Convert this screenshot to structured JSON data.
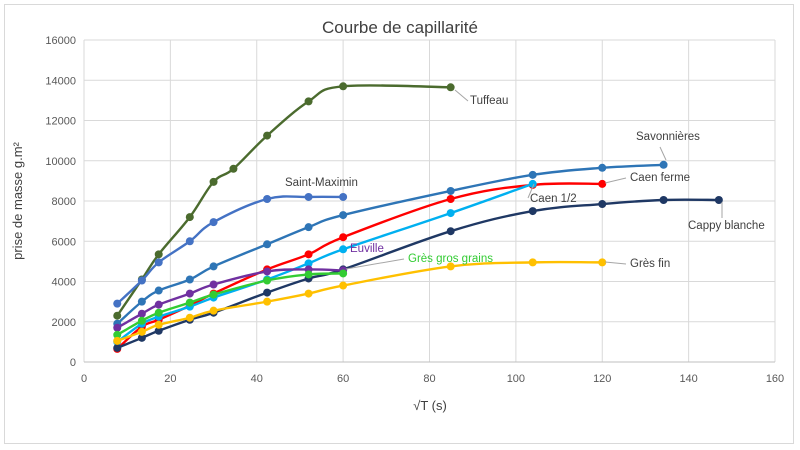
{
  "chart_data": {
    "type": "line",
    "title": "Courbe de capillarité",
    "xlabel": "√T  (s)",
    "ylabel": "prise de masse g.m²",
    "xlim": [
      0,
      160
    ],
    "ylim": [
      0,
      16000
    ],
    "x_ticks": [
      "0",
      "20",
      "40",
      "60",
      "80",
      "100",
      "120",
      "140",
      "160"
    ],
    "y_ticks": [
      "0",
      "2000",
      "4000",
      "6000",
      "8000",
      "10000",
      "12000",
      "14000",
      "16000"
    ],
    "grid": true,
    "legend": "none",
    "series": [
      {
        "name": "Tuffeau",
        "color": "#4b6b2e",
        "points": [
          [
            7.7,
            2300
          ],
          [
            13.4,
            4100
          ],
          [
            17.3,
            5350
          ],
          [
            24.5,
            7200
          ],
          [
            30,
            8950
          ],
          [
            34.6,
            9600
          ],
          [
            42.4,
            11250
          ],
          [
            52,
            12950
          ],
          [
            60,
            13700
          ],
          [
            84.9,
            13650
          ]
        ]
      },
      {
        "name": "Saint-Maximin",
        "color": "#4472c4",
        "points": [
          [
            7.7,
            2900
          ],
          [
            13.4,
            4050
          ],
          [
            17.3,
            4950
          ],
          [
            24.5,
            6000
          ],
          [
            30,
            6950
          ],
          [
            42.4,
            8100
          ],
          [
            52,
            8200
          ],
          [
            60,
            8200
          ]
        ]
      },
      {
        "name": "Savonnières",
        "color": "#2e75b6",
        "points": [
          [
            7.7,
            1900
          ],
          [
            13.4,
            3000
          ],
          [
            17.3,
            3550
          ],
          [
            24.5,
            4100
          ],
          [
            30,
            4750
          ],
          [
            42.4,
            5850
          ],
          [
            52,
            6700
          ],
          [
            60,
            7300
          ],
          [
            84.9,
            8500
          ],
          [
            103.9,
            9300
          ],
          [
            120,
            9650
          ],
          [
            134.2,
            9800
          ]
        ]
      },
      {
        "name": "Caen ferme",
        "color": "#ff0000",
        "points": [
          [
            7.7,
            650
          ],
          [
            13.4,
            1750
          ],
          [
            17.3,
            2100
          ],
          [
            24.5,
            2800
          ],
          [
            30,
            3400
          ],
          [
            42.4,
            4600
          ],
          [
            52,
            5350
          ],
          [
            60,
            6200
          ],
          [
            84.9,
            8100
          ],
          [
            103.9,
            8800
          ],
          [
            120,
            8850
          ]
        ]
      },
      {
        "name": "Caen 1/2",
        "color": "#00b0f0",
        "points": [
          [
            7.7,
            1000
          ],
          [
            13.4,
            1900
          ],
          [
            17.3,
            2250
          ],
          [
            24.5,
            2750
          ],
          [
            30,
            3200
          ],
          [
            42.4,
            4100
          ],
          [
            52,
            4900
          ],
          [
            60,
            5600
          ],
          [
            84.9,
            7400
          ],
          [
            103.9,
            8850
          ]
        ]
      },
      {
        "name": "Cappy blanche",
        "color": "#1f3864",
        "points": [
          [
            7.7,
            700
          ],
          [
            13.4,
            1200
          ],
          [
            17.3,
            1550
          ],
          [
            24.5,
            2100
          ],
          [
            30,
            2450
          ],
          [
            42.4,
            3450
          ],
          [
            52,
            4150
          ],
          [
            60,
            4600
          ],
          [
            84.9,
            6500
          ],
          [
            103.9,
            7500
          ],
          [
            120,
            7850
          ],
          [
            134.2,
            8050
          ],
          [
            147,
            8050
          ]
        ]
      },
      {
        "name": "Euville",
        "color": "#7030a0",
        "points": [
          [
            7.7,
            1700
          ],
          [
            13.4,
            2400
          ],
          [
            17.3,
            2850
          ],
          [
            24.5,
            3400
          ],
          [
            30,
            3850
          ],
          [
            42.4,
            4500
          ],
          [
            52,
            4600
          ],
          [
            60,
            4550
          ]
        ]
      },
      {
        "name": "Grès gros grains",
        "color": "#33cc33",
        "points": [
          [
            7.7,
            1350
          ],
          [
            13.4,
            2050
          ],
          [
            17.3,
            2450
          ],
          [
            24.5,
            2950
          ],
          [
            30,
            3350
          ],
          [
            42.4,
            4050
          ],
          [
            52,
            4350
          ],
          [
            60,
            4400
          ]
        ]
      },
      {
        "name": "Grès fin",
        "color": "#ffc000",
        "points": [
          [
            7.7,
            1050
          ],
          [
            13.4,
            1500
          ],
          [
            17.3,
            1850
          ],
          [
            24.5,
            2200
          ],
          [
            30,
            2550
          ],
          [
            42.4,
            3000
          ],
          [
            52,
            3400
          ],
          [
            60,
            3800
          ],
          [
            84.9,
            4750
          ],
          [
            103.9,
            4950
          ],
          [
            120,
            4950
          ]
        ]
      }
    ]
  }
}
